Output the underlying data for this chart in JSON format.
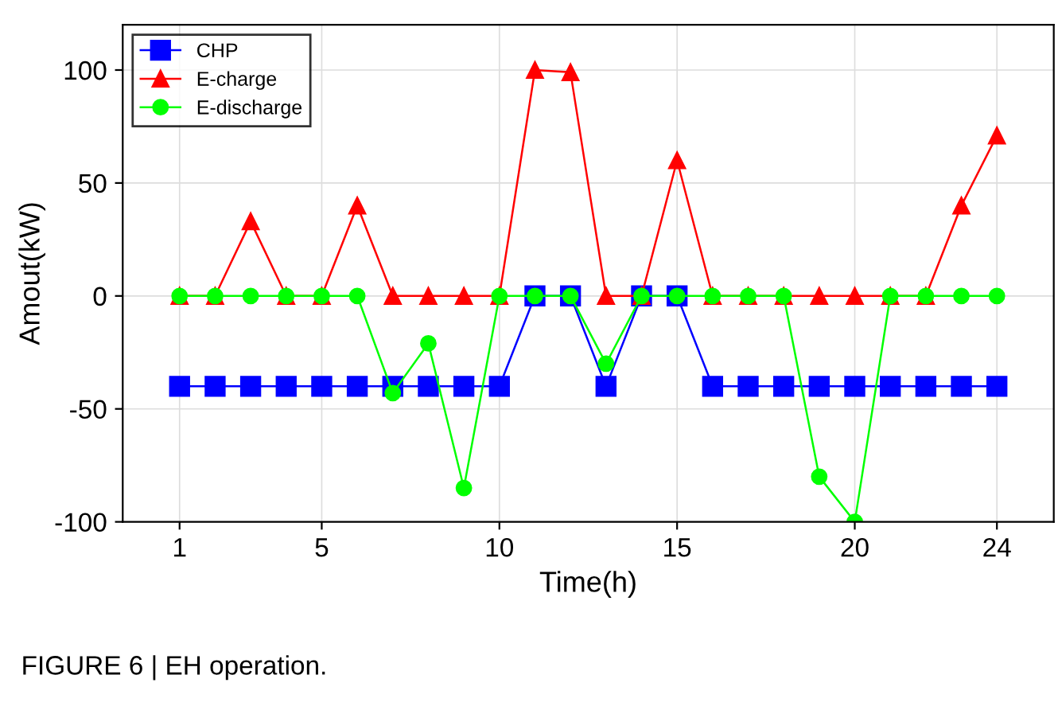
{
  "chart_data": {
    "type": "line",
    "xlabel": "Time(h)",
    "ylabel": "Amout(kW)",
    "x": [
      1,
      2,
      3,
      4,
      5,
      6,
      7,
      8,
      9,
      10,
      11,
      12,
      13,
      14,
      15,
      16,
      17,
      18,
      19,
      20,
      21,
      22,
      23,
      24
    ],
    "series": [
      {
        "name": "CHP",
        "color": "#0000ff",
        "marker": "square",
        "values": [
          -40,
          -40,
          -40,
          -40,
          -40,
          -40,
          -40,
          -40,
          -40,
          -40,
          0,
          0,
          -40,
          0,
          0,
          -40,
          -40,
          -40,
          -40,
          -40,
          -40,
          -40,
          -40,
          -40
        ]
      },
      {
        "name": "E-charge",
        "color": "#ff0000",
        "marker": "triangle",
        "values": [
          0,
          0,
          33,
          0,
          0,
          40,
          0,
          0,
          0,
          0,
          100,
          99,
          0,
          0,
          60,
          0,
          0,
          0,
          0,
          0,
          0,
          0,
          40,
          71
        ]
      },
      {
        "name": "E-discharge",
        "color": "#00ff00",
        "marker": "circle",
        "values": [
          0,
          0,
          0,
          0,
          0,
          0,
          -43,
          -21,
          -85,
          0,
          0,
          0,
          -30,
          0,
          0,
          0,
          0,
          0,
          -80,
          -100,
          0,
          0,
          0,
          0
        ]
      }
    ],
    "xlim": [
      -0.6,
      25.6
    ],
    "xticks": [
      1,
      5,
      10,
      15,
      20,
      24
    ],
    "ylim": [
      -100,
      120
    ],
    "yticks": [
      -100,
      -50,
      0,
      50,
      100
    ],
    "grid": true,
    "legend": "top left",
    "line_style": "solid",
    "annotations": [
      "FIGURE 6 | EH operation."
    ]
  }
}
